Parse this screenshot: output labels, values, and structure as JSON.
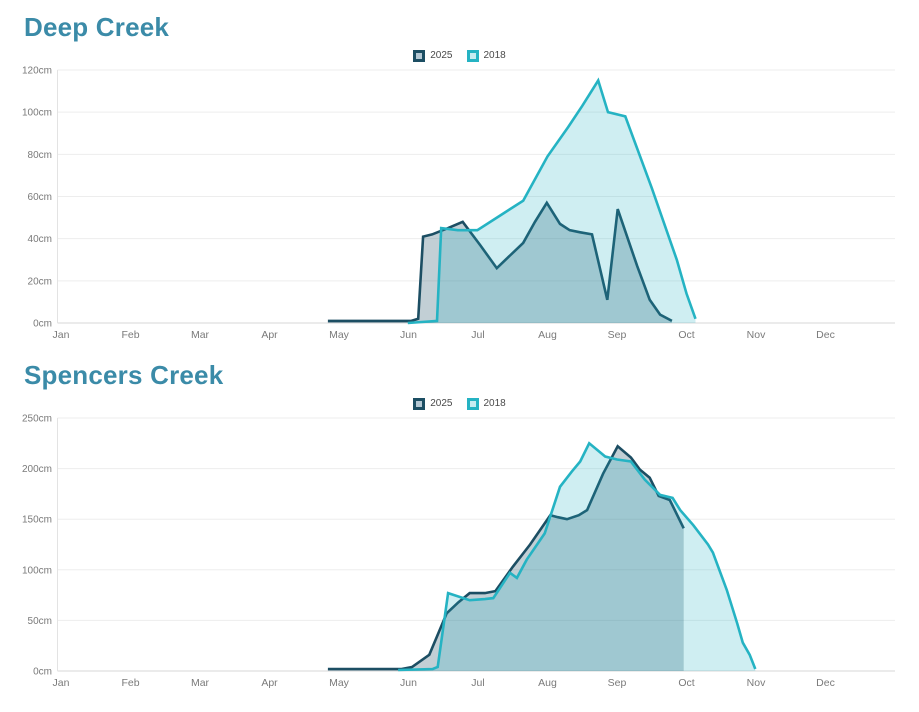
{
  "chart_data": [
    {
      "type": "area",
      "title": "Deep Creek",
      "unit": "cm",
      "x_labels": [
        "Jan",
        "Feb",
        "Mar",
        "Apr",
        "May",
        "Jun",
        "Jul",
        "Aug",
        "Sep",
        "Oct",
        "Nov",
        "Dec"
      ],
      "ylim": [
        0,
        120
      ],
      "y_ticks": [
        0,
        20,
        40,
        60,
        80,
        100,
        120
      ],
      "y_tick_suffix": "cm",
      "grid": true,
      "legend_position": "top-center",
      "title_color": "#3b8ba8",
      "series": [
        {
          "name": "2025",
          "line_color": "#1c4e63",
          "fill_color": "rgba(28,78,99,0.27)",
          "points_month_value": [
            [
              3.84,
              1
            ],
            [
              4.4,
              1
            ],
            [
              5.04,
              1
            ],
            [
              5.14,
              2
            ],
            [
              5.21,
              41
            ],
            [
              5.34,
              42
            ],
            [
              5.57,
              45
            ],
            [
              5.78,
              48
            ],
            [
              6.03,
              37
            ],
            [
              6.27,
              26
            ],
            [
              6.46,
              32
            ],
            [
              6.65,
              38
            ],
            [
              6.82,
              48
            ],
            [
              6.99,
              57
            ],
            [
              7.18,
              47
            ],
            [
              7.32,
              44
            ],
            [
              7.47,
              43
            ],
            [
              7.64,
              42
            ],
            [
              7.86,
              11
            ],
            [
              8.01,
              54
            ],
            [
              8.29,
              27
            ],
            [
              8.47,
              11
            ],
            [
              8.62,
              4
            ],
            [
              8.79,
              1
            ]
          ]
        },
        {
          "name": "2018",
          "line_color": "#25b3c3",
          "fill_color": "rgba(37,179,195,0.22)",
          "points_month_value": [
            [
              4.99,
              0
            ],
            [
              5.41,
              1
            ],
            [
              5.47,
              45
            ],
            [
              5.71,
              44
            ],
            [
              5.99,
              44
            ],
            [
              6.32,
              51
            ],
            [
              6.65,
              58
            ],
            [
              6.75,
              64
            ],
            [
              7.0,
              79
            ],
            [
              7.3,
              93
            ],
            [
              7.5,
              103
            ],
            [
              7.73,
              115
            ],
            [
              7.87,
              100
            ],
            [
              8.12,
              98
            ],
            [
              8.5,
              64
            ],
            [
              8.86,
              30
            ],
            [
              9.0,
              14
            ],
            [
              9.13,
              2
            ]
          ]
        }
      ]
    },
    {
      "type": "area",
      "title": "Spencers Creek",
      "unit": "cm",
      "x_labels": [
        "Jan",
        "Feb",
        "Mar",
        "Apr",
        "May",
        "Jun",
        "Jul",
        "Aug",
        "Sep",
        "Oct",
        "Nov",
        "Dec"
      ],
      "ylim": [
        0,
        250
      ],
      "y_ticks": [
        0,
        50,
        100,
        150,
        200,
        250
      ],
      "y_tick_suffix": "cm",
      "grid": true,
      "legend_position": "top-center",
      "title_color": "#3b8ba8",
      "series": [
        {
          "name": "2025",
          "line_color": "#1c4e63",
          "fill_color": "rgba(28,78,99,0.27)",
          "points_month_value": [
            [
              3.84,
              2
            ],
            [
              4.4,
              2
            ],
            [
              4.9,
              2
            ],
            [
              5.05,
              4
            ],
            [
              5.3,
              16
            ],
            [
              5.55,
              57
            ],
            [
              5.72,
              68
            ],
            [
              5.88,
              77
            ],
            [
              6.1,
              77
            ],
            [
              6.25,
              79
            ],
            [
              6.5,
              103
            ],
            [
              6.75,
              125
            ],
            [
              7.04,
              154
            ],
            [
              7.15,
              152
            ],
            [
              7.28,
              150
            ],
            [
              7.45,
              154
            ],
            [
              7.57,
              159
            ],
            [
              7.8,
              195
            ],
            [
              8.01,
              222
            ],
            [
              8.2,
              211
            ],
            [
              8.33,
              199
            ],
            [
              8.47,
              191
            ],
            [
              8.6,
              173
            ],
            [
              8.76,
              169
            ],
            [
              8.96,
              141
            ]
          ]
        },
        {
          "name": "2018",
          "line_color": "#25b3c3",
          "fill_color": "rgba(37,179,195,0.22)",
          "points_month_value": [
            [
              4.85,
              1
            ],
            [
              5.35,
              2
            ],
            [
              5.42,
              4
            ],
            [
              5.57,
              77
            ],
            [
              5.88,
              70
            ],
            [
              6.1,
              71
            ],
            [
              6.22,
              72
            ],
            [
              6.46,
              97
            ],
            [
              6.56,
              92
            ],
            [
              6.7,
              110
            ],
            [
              6.96,
              136
            ],
            [
              7.18,
              182
            ],
            [
              7.35,
              197
            ],
            [
              7.47,
              207
            ],
            [
              7.6,
              225
            ],
            [
              7.83,
              212
            ],
            [
              8.0,
              209
            ],
            [
              8.2,
              207
            ],
            [
              8.4,
              189
            ],
            [
              8.62,
              174
            ],
            [
              8.8,
              171
            ],
            [
              8.91,
              159
            ],
            [
              9.1,
              144
            ],
            [
              9.31,
              125
            ],
            [
              9.38,
              117
            ],
            [
              9.58,
              80
            ],
            [
              9.73,
              47
            ],
            [
              9.81,
              28
            ],
            [
              9.91,
              16
            ],
            [
              9.99,
              2
            ]
          ]
        }
      ]
    }
  ]
}
